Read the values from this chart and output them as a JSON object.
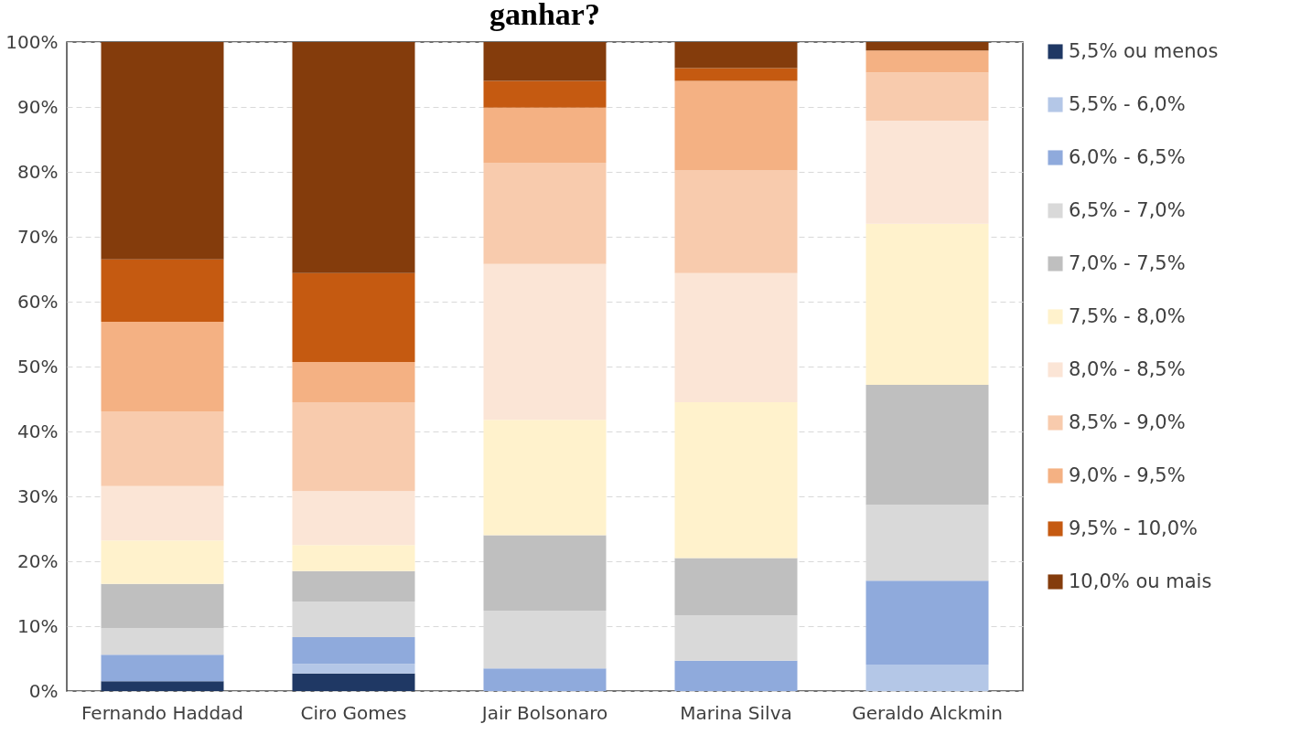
{
  "chart_data": {
    "type": "bar",
    "stacked": true,
    "title": "ganhar?",
    "categories": [
      "Fernando Haddad",
      "Ciro Gomes",
      "Jair Bolsonaro",
      "Marina Silva",
      "Geraldo Alckmin"
    ],
    "series": [
      {
        "name": "5,5% ou menos",
        "color": "#1f3864",
        "values": [
          1.5,
          2.7,
          0,
          0,
          0
        ]
      },
      {
        "name": "5,5% - 6,0%",
        "color": "#b4c7e7",
        "values": [
          0,
          1.5,
          0,
          0,
          4.1
        ]
      },
      {
        "name": "6,0% - 6,5%",
        "color": "#8faadc",
        "values": [
          4.1,
          4.1,
          3.5,
          4.7,
          12.9
        ]
      },
      {
        "name": "6,5% - 7,0%",
        "color": "#d9d9d9",
        "values": [
          4.1,
          5.5,
          8.9,
          7.0,
          11.7
        ]
      },
      {
        "name": "7,0% - 7,5%",
        "color": "#bfbfbf",
        "values": [
          6.8,
          4.7,
          11.6,
          8.8,
          18.5
        ]
      },
      {
        "name": "7,5% - 8,0%",
        "color": "#fff2cc",
        "values": [
          6.7,
          4.0,
          17.8,
          24.0,
          24.8
        ]
      },
      {
        "name": "8,0% - 8,5%",
        "color": "#fbe5d6",
        "values": [
          8.4,
          8.3,
          24.0,
          19.9,
          15.9
        ]
      },
      {
        "name": "8,5% - 9,0%",
        "color": "#f8cbad",
        "values": [
          11.5,
          13.7,
          15.6,
          15.8,
          7.4
        ]
      },
      {
        "name": "9,0% - 9,5%",
        "color": "#f4b183",
        "values": [
          13.8,
          6.2,
          8.5,
          13.8,
          3.4
        ]
      },
      {
        "name": "9,5% - 10,0%",
        "color": "#c55a11",
        "values": [
          9.6,
          13.7,
          4.1,
          2.0,
          0
        ]
      },
      {
        "name": "10,0% ou mais",
        "color": "#843c0c",
        "values": [
          33.5,
          35.6,
          6.0,
          4.0,
          1.3
        ]
      }
    ],
    "ylim": [
      0,
      100
    ],
    "yticks": [
      {
        "value": 0,
        "label": "0%"
      },
      {
        "value": 10,
        "label": "10%"
      },
      {
        "value": 20,
        "label": "20%"
      },
      {
        "value": 30,
        "label": "30%"
      },
      {
        "value": 40,
        "label": "40%"
      },
      {
        "value": 50,
        "label": "50%"
      },
      {
        "value": 60,
        "label": "60%"
      },
      {
        "value": 70,
        "label": "70%"
      },
      {
        "value": 80,
        "label": "80%"
      },
      {
        "value": 90,
        "label": "90%"
      },
      {
        "value": 100,
        "label": "100%"
      }
    ],
    "grid": "y",
    "legend": "right"
  }
}
